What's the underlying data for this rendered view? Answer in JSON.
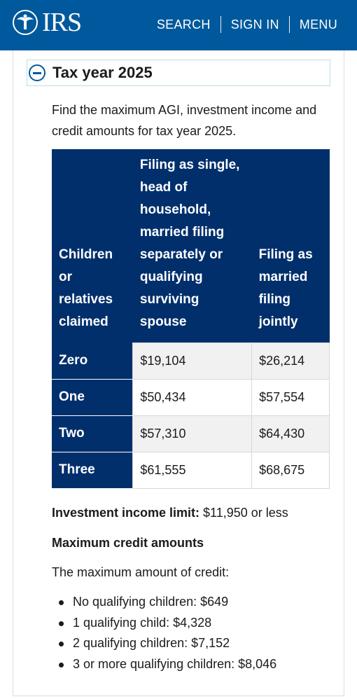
{
  "header": {
    "logo_text": "IRS",
    "nav": [
      "SEARCH",
      "SIGN IN",
      "MENU"
    ]
  },
  "accordion": {
    "title": "Tax year 2025",
    "expanded": true
  },
  "intro": "Find the maximum AGI, investment income and credit amounts for tax year 2025.",
  "table": {
    "headers": [
      "Children or relatives claimed",
      "Filing as single, head of household, married filing separately or qualifying surviving spouse",
      "Filing as married filing jointly"
    ],
    "rows": [
      {
        "label": "Zero",
        "single": "$19,104",
        "joint": "$26,214"
      },
      {
        "label": "One",
        "single": "$50,434",
        "joint": "$57,554"
      },
      {
        "label": "Two",
        "single": "$57,310",
        "joint": "$64,430"
      },
      {
        "label": "Three",
        "single": "$61,555",
        "joint": "$68,675"
      }
    ]
  },
  "investment": {
    "label": "Investment income limit:",
    "value": " $11,950 or less"
  },
  "max_credit": {
    "heading": "Maximum credit amounts",
    "text": "The maximum amount of credit:",
    "items": [
      "No qualifying children: $649",
      "1 qualifying child: $4,328",
      "2 qualifying children: $7,152",
      "3 or more qualifying children: $8,046"
    ]
  },
  "colors": {
    "header_bg": "#00599c",
    "table_header_bg": "#002f6c",
    "accent": "#00599c"
  }
}
